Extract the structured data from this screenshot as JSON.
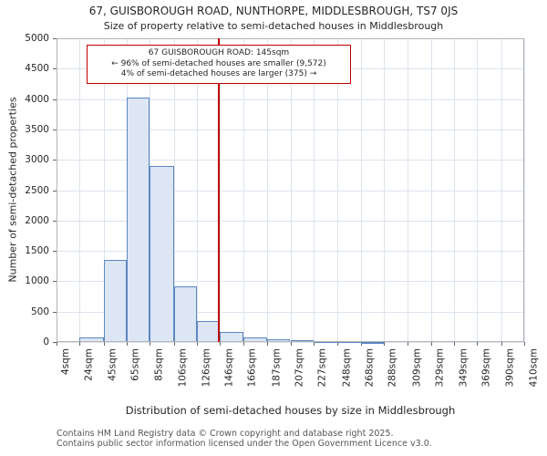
{
  "chart_data": {
    "type": "bar",
    "title": "67, GUISBOROUGH ROAD, NUNTHORPE, MIDDLESBROUGH, TS7 0JS",
    "subtitle": "Size of property relative to semi-detached houses in Middlesbrough",
    "xlabel": "Distribution of semi-detached houses by size in Middlesbrough",
    "ylabel": "Number of semi-detached properties",
    "ylim": [
      0,
      5000
    ],
    "y_ticks": [
      0,
      500,
      1000,
      1500,
      2000,
      2500,
      3000,
      3500,
      4000,
      4500,
      5000
    ],
    "bin_edges": [
      4,
      24,
      45,
      65,
      85,
      106,
      126,
      146,
      166,
      187,
      207,
      227,
      248,
      268,
      288,
      309,
      329,
      349,
      369,
      390,
      410
    ],
    "x_tick_labels": [
      "4sqm",
      "24sqm",
      "45sqm",
      "65sqm",
      "85sqm",
      "106sqm",
      "126sqm",
      "146sqm",
      "166sqm",
      "187sqm",
      "207sqm",
      "227sqm",
      "248sqm",
      "268sqm",
      "288sqm",
      "309sqm",
      "329sqm",
      "349sqm",
      "369sqm",
      "390sqm",
      "410sqm"
    ],
    "counts": [
      0,
      75,
      1350,
      4020,
      2900,
      920,
      340,
      170,
      75,
      45,
      30,
      15,
      10,
      5,
      0,
      0,
      0,
      0,
      0,
      0
    ],
    "grid": true,
    "legend": false,
    "marker": {
      "value": 145,
      "label": "67 GUISBOROUGH ROAD: 145sqm"
    },
    "annotation": {
      "line1": "67 GUISBOROUGH ROAD: 145sqm",
      "line2": "← 96% of semi-detached houses are smaller (9,572)",
      "line3": "4% of semi-detached houses are larger (375) →"
    }
  },
  "footer": {
    "line1": "Contains HM Land Registry data © Crown copyright and database right 2025.",
    "line2": "Contains public sector information licensed under the Open Government Licence v3.0."
  },
  "colors": {
    "bar_fill": "#dce6f4",
    "bar_border": "#5b87c0",
    "grid": "#dce3ee",
    "axis": "#b5b5b5",
    "tick": "#666666",
    "marker": "#c00000",
    "annotation_border": "#c00000",
    "text": "#262626",
    "footer_text": "#555555"
  }
}
